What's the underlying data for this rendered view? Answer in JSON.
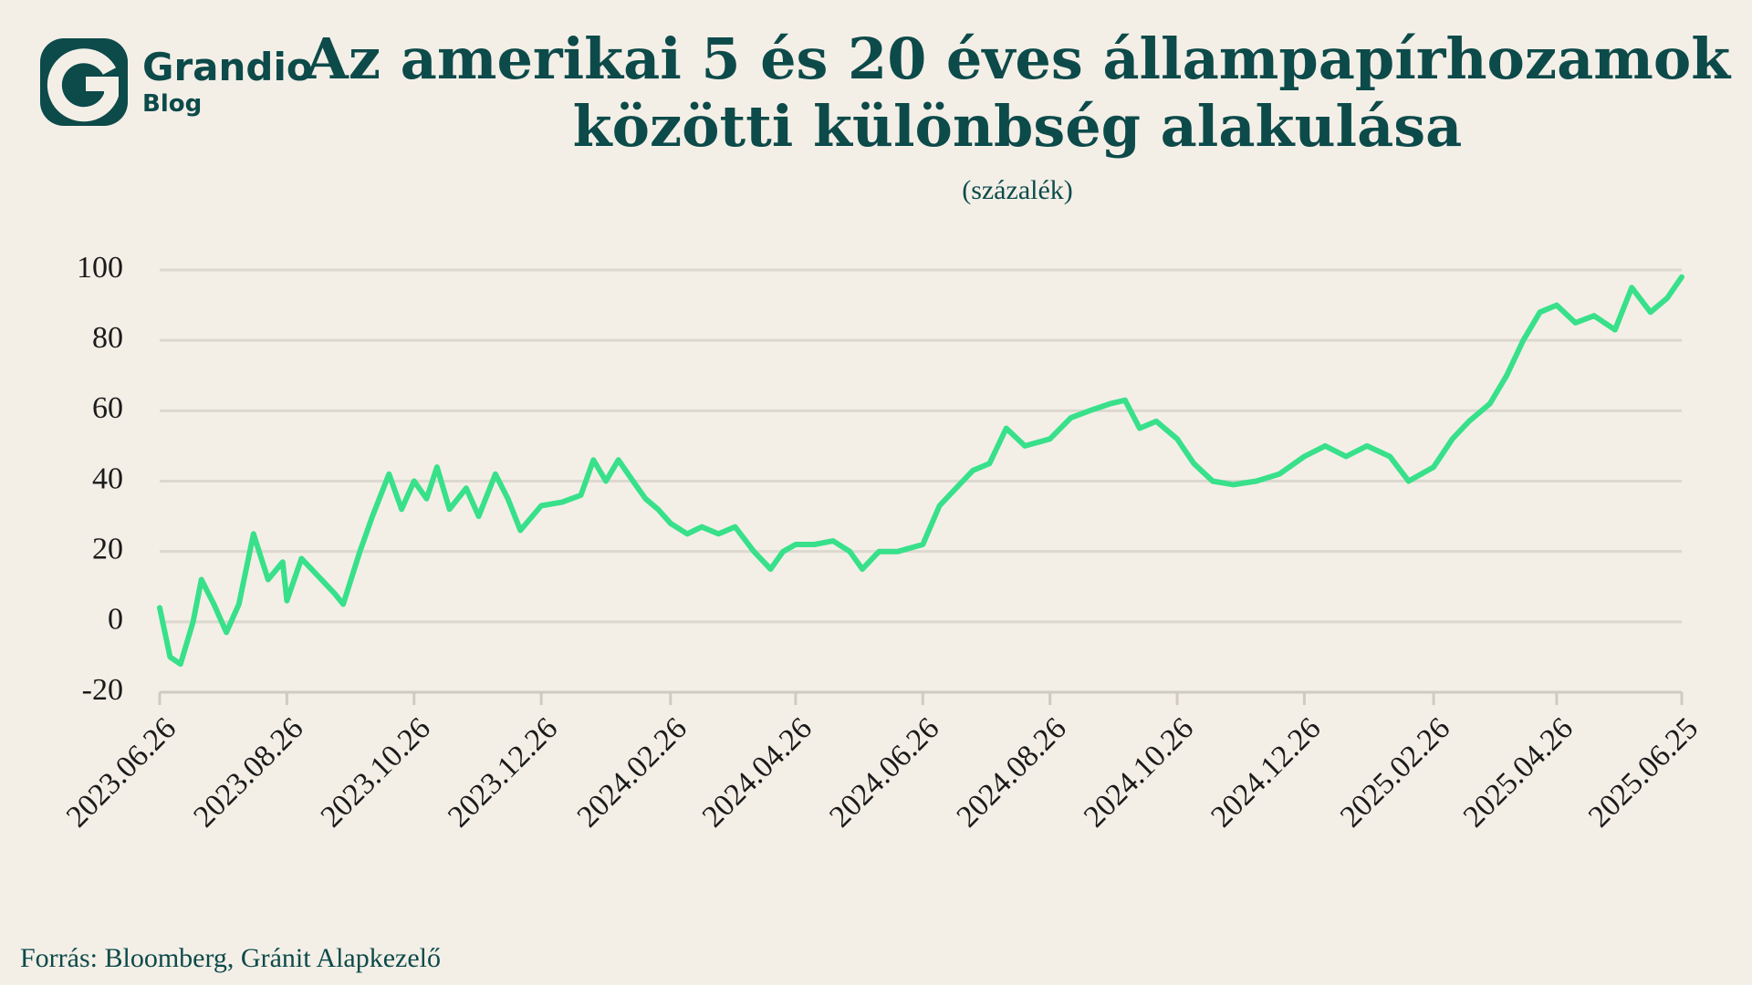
{
  "brand": {
    "name": "Grandio",
    "sub": "Blog"
  },
  "chart_data": {
    "type": "line",
    "title": "Az amerikai 5 és 20 éves állampapírhozamok",
    "title2": "közötti különbség alakulása",
    "subtitle": "(százalék)",
    "source": "Forrás: Bloomberg, Gránit Alapkezelő",
    "color": "#38e08a",
    "grid": true,
    "x": [
      "2023.06.26",
      "2023.07.01",
      "2023.07.06",
      "2023.07.12",
      "2023.07.16",
      "2023.07.22",
      "2023.07.28",
      "2023.08.03",
      "2023.08.10",
      "2023.08.17",
      "2023.08.24",
      "2023.08.26",
      "2023.09.02",
      "2023.09.10",
      "2023.09.18",
      "2023.09.22",
      "2023.09.30",
      "2023.10.06",
      "2023.10.14",
      "2023.10.20",
      "2023.10.26",
      "2023.11.01",
      "2023.11.06",
      "2023.11.12",
      "2023.11.20",
      "2023.11.26",
      "2023.12.04",
      "2023.12.10",
      "2023.12.16",
      "2023.12.26",
      "2024.01.05",
      "2024.01.14",
      "2024.01.20",
      "2024.01.26",
      "2024.02.01",
      "2024.02.08",
      "2024.02.14",
      "2024.02.20",
      "2024.02.26",
      "2024.03.05",
      "2024.03.12",
      "2024.03.20",
      "2024.03.28",
      "2024.04.06",
      "2024.04.14",
      "2024.04.20",
      "2024.04.26",
      "2024.05.05",
      "2024.05.14",
      "2024.05.22",
      "2024.05.28",
      "2024.06.05",
      "2024.06.14",
      "2024.06.26",
      "2024.07.04",
      "2024.07.12",
      "2024.07.20",
      "2024.07.28",
      "2024.08.05",
      "2024.08.14",
      "2024.08.26",
      "2024.09.05",
      "2024.09.14",
      "2024.09.24",
      "2024.10.01",
      "2024.10.08",
      "2024.10.16",
      "2024.10.26",
      "2024.11.03",
      "2024.11.12",
      "2024.11.22",
      "2024.12.03",
      "2024.12.14",
      "2024.12.26",
      "2025.01.05",
      "2025.01.15",
      "2025.01.25",
      "2025.02.05",
      "2025.02.14",
      "2025.02.26",
      "2025.03.07",
      "2025.03.15",
      "2025.03.25",
      "2025.04.02",
      "2025.04.10",
      "2025.04.18",
      "2025.04.26",
      "2025.05.05",
      "2025.05.14",
      "2025.05.24",
      "2025.06.01",
      "2025.06.10",
      "2025.06.18",
      "2025.06.25"
    ],
    "values": [
      4,
      -10,
      -12,
      0,
      12,
      5,
      -3,
      5,
      25,
      12,
      17,
      6,
      18,
      13,
      8,
      5,
      20,
      30,
      42,
      32,
      40,
      35,
      44,
      32,
      38,
      30,
      42,
      35,
      26,
      33,
      34,
      36,
      46,
      40,
      46,
      40,
      35,
      32,
      28,
      25,
      27,
      25,
      27,
      20,
      15,
      20,
      22,
      22,
      23,
      20,
      15,
      20,
      20,
      22,
      33,
      38,
      43,
      45,
      55,
      50,
      52,
      58,
      60,
      62,
      63,
      55,
      57,
      52,
      45,
      40,
      39,
      40,
      42,
      47,
      50,
      47,
      50,
      47,
      40,
      44,
      52,
      57,
      62,
      70,
      80,
      88,
      90,
      85,
      87,
      83,
      95,
      88,
      92,
      98
    ],
    "xlim": [
      "2023.06.26",
      "2025.06.25"
    ],
    "xticks": [
      "2023.06.26",
      "2023.08.26",
      "2023.10.26",
      "2023.12.26",
      "2024.02.26",
      "2024.04.26",
      "2024.06.26",
      "2024.08.26",
      "2024.10.26",
      "2024.12.26",
      "2025.02.26",
      "2025.04.26",
      "2025.06.25"
    ],
    "ylim": [
      -20,
      100
    ],
    "yticks": [
      -20,
      0,
      20,
      40,
      60,
      80,
      100
    ]
  }
}
